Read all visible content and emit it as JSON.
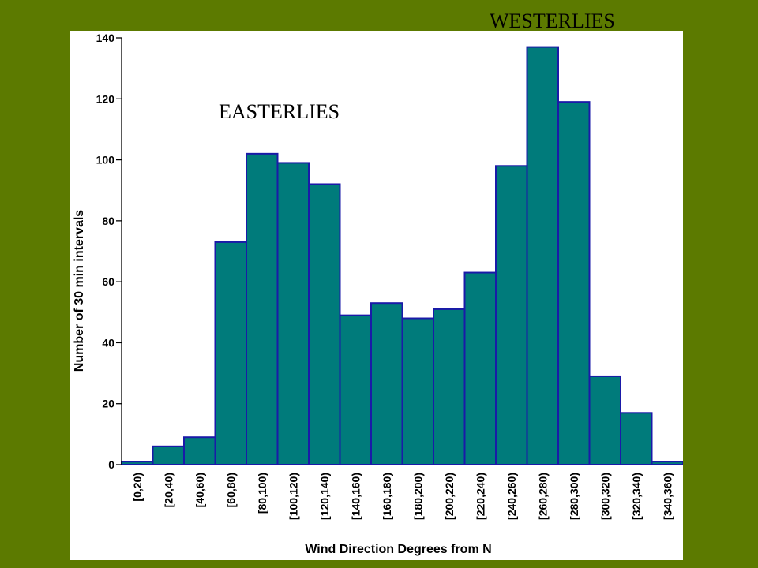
{
  "chart_data": {
    "type": "bar",
    "title": "",
    "xlabel": "Wind Direction Degrees from N",
    "ylabel": "Number of 30 min intervals",
    "ylim": [
      0,
      140
    ],
    "yticks": [
      0,
      20,
      40,
      60,
      80,
      100,
      120,
      140
    ],
    "grid": false,
    "categories": [
      "[0,20)",
      "[20,40)",
      "[40,60)",
      "[60,80)",
      "[80,100)",
      "[100,120)",
      "[120,140)",
      "[140,160)",
      "[160,180)",
      "[180,200)",
      "[200,220)",
      "[220,240)",
      "[240,260)",
      "[260,280)",
      "[280,300)",
      "[300,320)",
      "[320,340)",
      "[340,360)"
    ],
    "values": [
      1,
      6,
      9,
      73,
      102,
      99,
      92,
      49,
      53,
      48,
      51,
      63,
      98,
      137,
      119,
      29,
      17,
      1
    ],
    "bar_color": "#007b7b",
    "bar_edge_color": "#1a1aa8",
    "annotations": [
      "WESTERLIES",
      "EASTERLIES"
    ]
  },
  "colors": {
    "background": "#5c7a00",
    "panel": "#ffffff"
  }
}
